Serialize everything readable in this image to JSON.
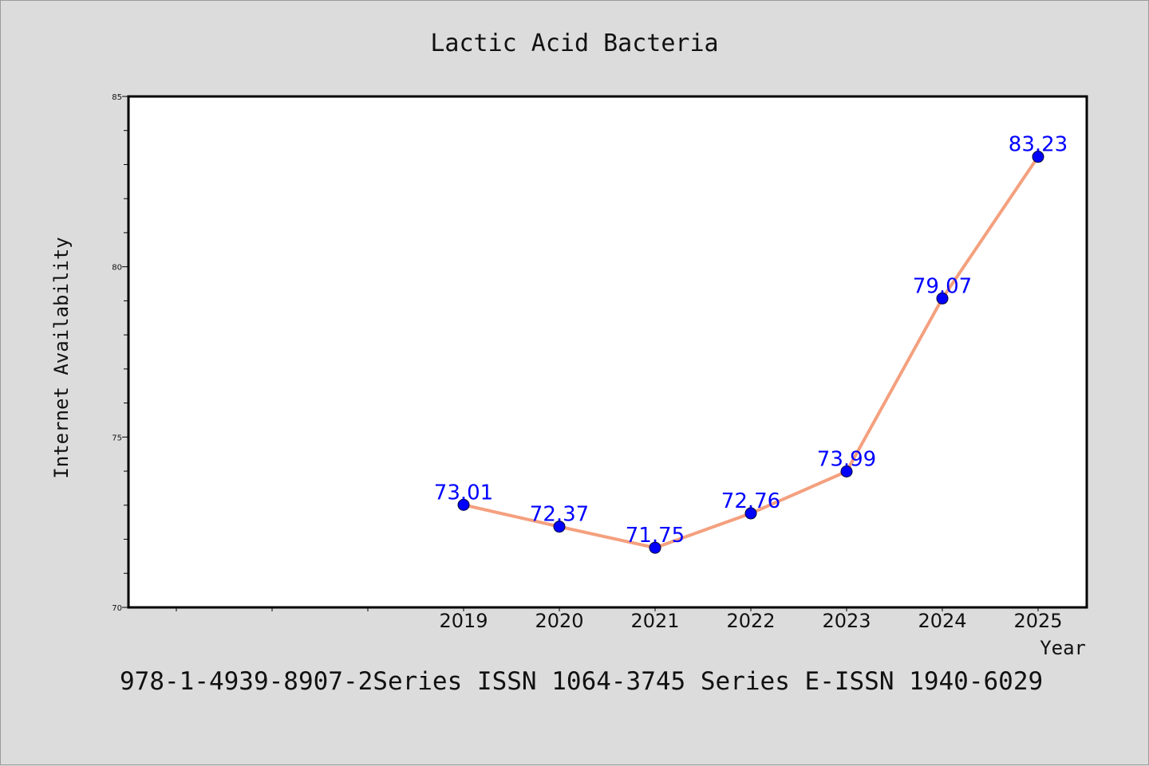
{
  "chart_data": {
    "type": "line",
    "title": "Lactic Acid Bacteria",
    "xlabel": "Year",
    "ylabel": "Internet Availability",
    "categories": [
      "2019",
      "2020",
      "2021",
      "2022",
      "2023",
      "2024",
      "2025"
    ],
    "values": [
      73.01,
      72.37,
      71.75,
      72.76,
      73.99,
      79.07,
      83.23
    ],
    "data_labels": [
      "73.01",
      "72.37",
      "71.75",
      "72.76",
      "73.99",
      "79.07",
      "83.23"
    ],
    "ylim": [
      70,
      85
    ],
    "y_ticks": [
      "70",
      "75",
      "80",
      "85"
    ],
    "grid": false,
    "line_color": "#f4a07e",
    "marker_color": "#0000ff",
    "label_color": "#0000ff",
    "plot_background": "#ffffff",
    "page_background": "#dcdcdc"
  },
  "footer": {
    "text": "978-1-4939-8907-2Series ISSN 1064-3745 Series E-ISSN 1940-6029"
  }
}
